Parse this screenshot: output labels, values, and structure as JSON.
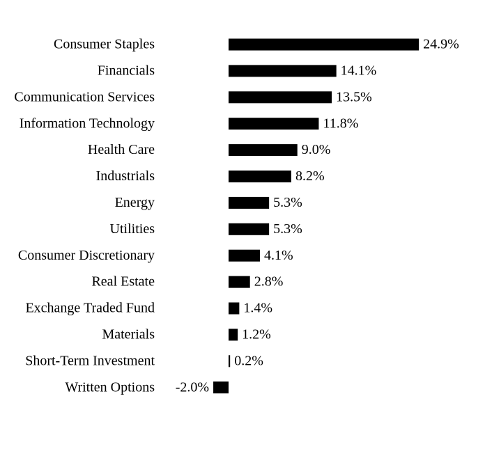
{
  "chart_data": {
    "type": "bar",
    "orientation": "horizontal",
    "color": "#000000",
    "categories": [
      "Consumer Staples",
      "Financials",
      "Communication Services",
      "Information Technology",
      "Health Care",
      "Industrials",
      "Energy",
      "Utilities",
      "Consumer Discretionary",
      "Real Estate",
      "Exchange Traded Fund",
      "Materials",
      "Short-Term Investment",
      "Written Options"
    ],
    "values": [
      24.9,
      14.1,
      13.5,
      11.8,
      9.0,
      8.2,
      5.3,
      5.3,
      4.1,
      2.8,
      1.4,
      1.2,
      0.2,
      -2.0
    ],
    "value_labels": [
      "24.9%",
      "14.1%",
      "13.5%",
      "11.8%",
      "9.0%",
      "8.2%",
      "5.3%",
      "5.3%",
      "4.1%",
      "2.8%",
      "1.4%",
      "1.2%",
      "0.2%",
      "-2.0%"
    ]
  }
}
